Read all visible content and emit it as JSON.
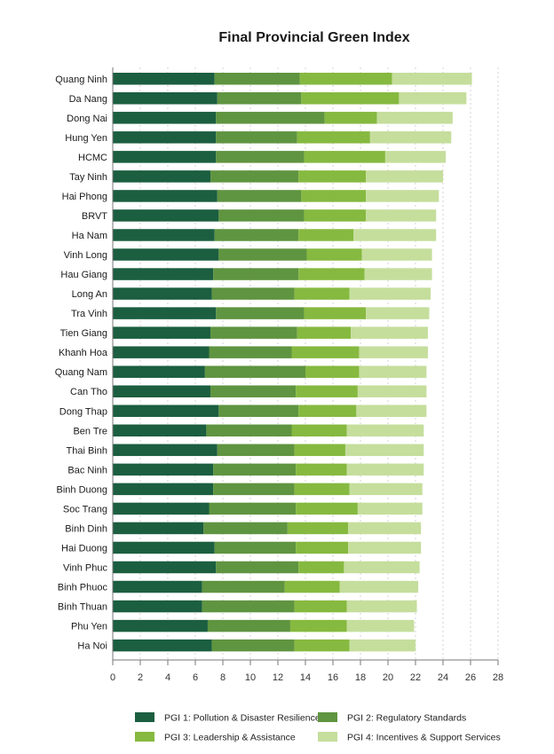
{
  "chart_data": {
    "type": "bar",
    "orientation": "horizontal",
    "stacked": true,
    "title": "Final Provincial Green Index",
    "xlabel": "",
    "ylabel": "",
    "xlim": [
      0,
      28
    ],
    "xticks": [
      0,
      2,
      4,
      6,
      8,
      10,
      12,
      14,
      16,
      18,
      20,
      22,
      24,
      26,
      28
    ],
    "grid": true,
    "legend_position": "bottom",
    "categories": [
      "Quang Ninh",
      "Da Nang",
      "Dong Nai",
      "Hung Yen",
      "HCMC",
      "Tay Ninh",
      "Hai Phong",
      "BRVT",
      "Ha Nam",
      "Vinh Long",
      "Hau Giang",
      "Long An",
      "Tra Vinh",
      "Tien Giang",
      "Khanh Hoa",
      "Quang Nam",
      "Can Tho",
      "Dong Thap",
      "Ben Tre",
      "Thai Binh",
      "Bac Ninh",
      "Binh Duong",
      "Soc Trang",
      "Binh Dinh",
      "Hai Duong",
      "Vinh Phuc",
      "Binh Phuoc",
      "Binh Thuan",
      "Phu Yen",
      "Ha Noi"
    ],
    "series": [
      {
        "name": "PGI 1: Pollution & Disaster Resilience",
        "color": "#1b5e40",
        "values": [
          7.4,
          7.6,
          7.5,
          7.5,
          7.5,
          7.1,
          7.6,
          7.7,
          7.4,
          7.7,
          7.3,
          7.2,
          7.5,
          7.1,
          7.0,
          6.7,
          7.1,
          7.7,
          6.8,
          7.6,
          7.3,
          7.3,
          7.0,
          6.6,
          7.4,
          7.5,
          6.5,
          6.5,
          6.9,
          7.2
        ]
      },
      {
        "name": "PGI 2: Regulatory Standards",
        "color": "#5f9440",
        "values": [
          6.2,
          6.1,
          7.9,
          5.9,
          6.4,
          6.4,
          6.1,
          6.2,
          6.1,
          6.4,
          6.2,
          6.0,
          6.4,
          6.3,
          6.0,
          7.3,
          6.2,
          5.8,
          6.2,
          5.6,
          6.0,
          5.9,
          6.3,
          6.1,
          5.9,
          6.0,
          6.0,
          6.7,
          6.0,
          6.0
        ]
      },
      {
        "name": "PGI 3: Leadership & Assistance",
        "color": "#86b940",
        "values": [
          6.7,
          7.1,
          3.8,
          5.3,
          5.9,
          4.9,
          4.7,
          4.5,
          4.0,
          4.0,
          4.8,
          4.0,
          4.5,
          3.9,
          4.9,
          3.9,
          4.5,
          4.2,
          4.0,
          3.7,
          3.7,
          4.0,
          4.5,
          4.4,
          3.8,
          3.3,
          4.0,
          3.8,
          4.1,
          4.0
        ]
      },
      {
        "name": "PGI 4: Incentives & Support Services",
        "color": "#c5de9c",
        "values": [
          5.8,
          4.9,
          5.5,
          5.9,
          4.4,
          5.6,
          5.3,
          5.1,
          6.0,
          5.1,
          4.9,
          5.9,
          4.6,
          5.6,
          5.0,
          4.9,
          5.0,
          5.1,
          5.6,
          5.7,
          5.6,
          5.3,
          4.7,
          5.3,
          5.3,
          5.5,
          5.7,
          5.1,
          4.9,
          4.8
        ]
      }
    ]
  }
}
